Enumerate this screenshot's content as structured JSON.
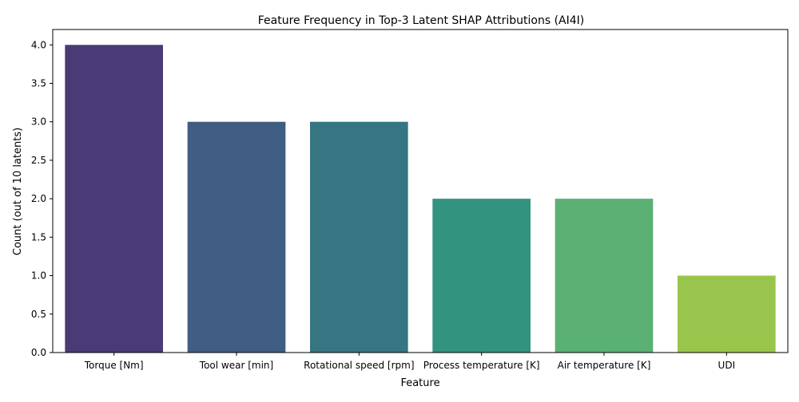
{
  "chart_data": {
    "type": "bar",
    "title": "Feature Frequency in Top-3 Latent SHAP Attributions (AI4I)",
    "xlabel": "Feature",
    "ylabel": "Count (out of 10 latents)",
    "categories": [
      "Torque [Nm]",
      "Tool wear [min]",
      "Rotational speed [rpm]",
      "Process temperature [K]",
      "Air temperature [K]",
      "UDI"
    ],
    "values": [
      4,
      3,
      3,
      2,
      2,
      1
    ],
    "colors": [
      "#4a3a75",
      "#405d84",
      "#367682",
      "#32937f",
      "#5ab173",
      "#9ac54c"
    ],
    "ylim": [
      0,
      4.2
    ],
    "yticks": [
      "0.0",
      "0.5",
      "1.0",
      "1.5",
      "2.0",
      "2.5",
      "3.0",
      "3.5",
      "4.0"
    ],
    "grid": false,
    "legend": "none"
  }
}
